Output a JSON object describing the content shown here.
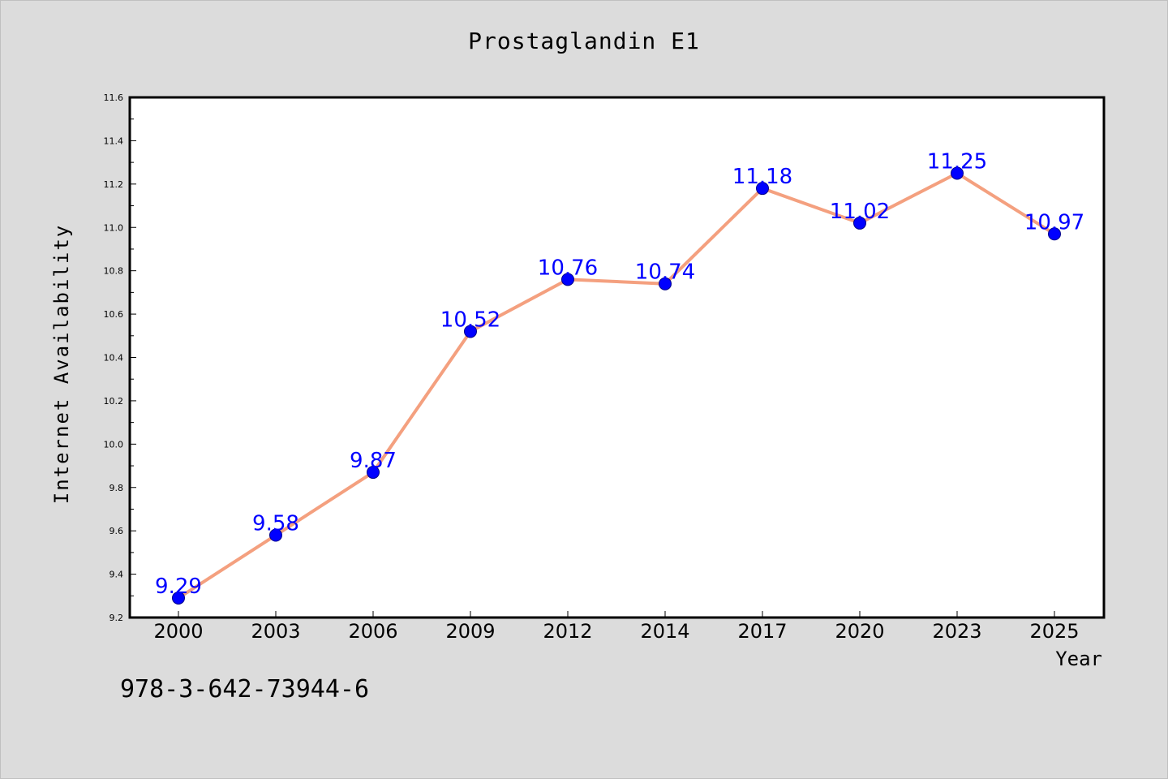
{
  "chart_data": {
    "type": "line",
    "title": "Prostaglandin E1",
    "xlabel": "Year",
    "ylabel": "Internet Availability",
    "categories": [
      "2000",
      "2003",
      "2006",
      "2009",
      "2012",
      "2014",
      "2017",
      "2020",
      "2023",
      "2025"
    ],
    "series": [
      {
        "values": [
          9.29,
          9.58,
          9.87,
          10.52,
          10.76,
          10.74,
          11.18,
          11.02,
          11.25,
          10.97
        ]
      }
    ],
    "data_labels": [
      "9.29",
      "9.58",
      "9.87",
      "10.52",
      "10.76",
      "10.74",
      "11.18",
      "11.02",
      "11.25",
      "10.97"
    ],
    "ylim": [
      9.2,
      11.6
    ],
    "yticks": [
      "9.2",
      "9.4",
      "9.6",
      "9.8",
      "10.0",
      "10.2",
      "10.4",
      "10.6",
      "10.8",
      "11.0",
      "11.2",
      "11.4",
      "11.6"
    ],
    "grid": false,
    "line_color": "#f4a07f",
    "marker_color": "#0000ff",
    "label_color": "#0000ff",
    "plot_background": "#ffffff",
    "figure_background": "#dcdcdc"
  },
  "caption": "978-3-642-73944-6"
}
